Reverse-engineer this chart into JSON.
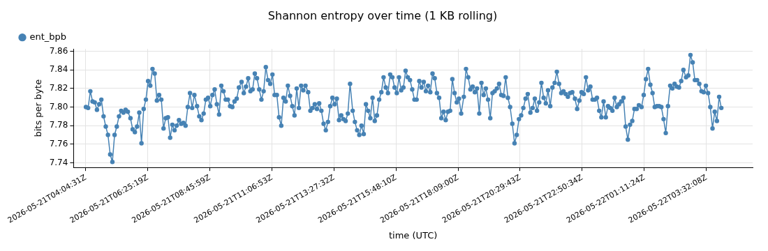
{
  "chart_data": {
    "type": "line",
    "title": "Shannon entropy over time (1 KB rolling)",
    "xlabel": "time (UTC)",
    "ylabel": "bits per byte",
    "xlim": [
      "2026-05-21T03:37",
      "2026-05-22T05:17"
    ],
    "xticks": [
      {
        "value": "2026-05-21T04:04:31",
        "label": "2026-05-21T04:04:31Z"
      },
      {
        "value": "2026-05-21T06:25:19",
        "label": "2026-05-21T06:25:19Z"
      },
      {
        "value": "2026-05-21T08:45:59",
        "label": "2026-05-21T08:45:59Z"
      },
      {
        "value": "2026-05-21T11:06:53",
        "label": "2026-05-21T11:06:53Z"
      },
      {
        "value": "2026-05-21T13:27:32",
        "label": "2026-05-21T13:27:32Z"
      },
      {
        "value": "2026-05-21T15:48:10",
        "label": "2026-05-21T15:48:10Z"
      },
      {
        "value": "2026-05-21T18:09:00",
        "label": "2026-05-21T18:09:00Z"
      },
      {
        "value": "2026-05-21T20:29:43",
        "label": "2026-05-21T20:29:43Z"
      },
      {
        "value": "2026-05-21T22:50:34",
        "label": "2026-05-21T22:50:34Z"
      },
      {
        "value": "2026-05-22T01:11:24",
        "label": "2026-05-22T01:11:24Z"
      },
      {
        "value": "2026-05-22T03:32:08",
        "label": "2026-05-22T03:32:08Z"
      }
    ],
    "ylim": [
      7.735,
      7.8625
    ],
    "yticks": [
      7.74,
      7.76,
      7.78,
      {
        "value": 7.8,
        "label": "7.80"
      },
      7.82,
      7.84,
      7.86
    ],
    "grid": true,
    "legend": "top left",
    "marker": "circle",
    "line_style": "solid",
    "x": [
      "2026-05-21T04:05",
      "2026-05-21T04:10",
      "2026-05-21T04:15",
      "2026-05-21T04:20",
      "2026-05-21T04:25",
      "2026-05-21T04:30",
      "2026-05-21T04:35",
      "2026-05-21T04:40",
      "2026-05-21T04:45",
      "2026-05-21T04:50",
      "2026-05-21T04:55",
      "2026-05-21T05:00",
      "2026-05-21T05:05",
      "2026-05-21T05:10",
      "2026-05-21T05:15",
      "2026-05-21T05:20",
      "2026-05-21T05:25",
      "2026-05-21T05:30",
      "2026-05-21T05:35",
      "2026-05-21T05:40",
      "2026-05-21T05:46",
      "2026-05-21T05:51",
      "2026-05-21T05:56",
      "2026-05-21T06:01",
      "2026-05-21T06:06",
      "2026-05-21T06:11",
      "2026-05-21T06:16",
      "2026-05-21T06:21",
      "2026-05-21T06:26",
      "2026-05-21T06:31",
      "2026-05-21T06:36",
      "2026-05-21T06:41",
      "2026-05-21T06:46",
      "2026-05-21T06:51",
      "2026-05-21T06:56",
      "2026-05-21T07:01",
      "2026-05-21T07:06",
      "2026-05-21T07:11",
      "2026-05-21T07:16",
      "2026-05-21T07:21",
      "2026-05-21T07:26",
      "2026-05-21T07:31",
      "2026-05-21T07:36",
      "2026-05-21T07:41",
      "2026-05-21T07:46",
      "2026-05-21T07:51",
      "2026-05-21T07:56",
      "2026-05-21T08:01",
      "2026-05-21T08:06",
      "2026-05-21T08:11",
      "2026-05-21T08:17",
      "2026-05-21T08:22",
      "2026-05-21T08:27",
      "2026-05-21T08:32",
      "2026-05-21T08:37",
      "2026-05-21T08:42",
      "2026-05-21T08:47",
      "2026-05-21T08:52",
      "2026-05-21T08:57",
      "2026-05-21T09:02",
      "2026-05-21T09:07",
      "2026-05-21T09:12",
      "2026-05-21T09:17",
      "2026-05-21T09:22",
      "2026-05-21T09:27",
      "2026-05-21T09:32",
      "2026-05-21T09:37",
      "2026-05-21T09:42",
      "2026-05-21T09:47",
      "2026-05-21T09:52",
      "2026-05-21T09:58",
      "2026-05-21T10:03",
      "2026-05-21T10:08",
      "2026-05-21T10:13",
      "2026-05-21T10:18",
      "2026-05-21T10:23",
      "2026-05-21T10:28",
      "2026-05-21T10:33",
      "2026-05-21T10:38",
      "2026-05-21T10:43",
      "2026-05-21T10:48",
      "2026-05-21T10:53",
      "2026-05-21T10:58",
      "2026-05-21T11:03",
      "2026-05-21T11:08",
      "2026-05-21T11:13",
      "2026-05-21T11:18",
      "2026-05-21T11:23",
      "2026-05-21T11:28",
      "2026-05-21T11:33",
      "2026-05-21T11:38",
      "2026-05-21T11:43",
      "2026-05-21T11:48",
      "2026-05-21T11:53",
      "2026-05-21T11:58",
      "2026-05-21T12:03",
      "2026-05-21T12:08",
      "2026-05-21T12:13",
      "2026-05-21T12:18",
      "2026-05-21T12:23",
      "2026-05-21T12:29",
      "2026-05-21T12:34",
      "2026-05-21T12:39",
      "2026-05-21T12:44",
      "2026-05-21T12:49",
      "2026-05-21T12:54",
      "2026-05-21T12:59",
      "2026-05-21T13:04",
      "2026-05-21T13:09",
      "2026-05-21T13:14",
      "2026-05-21T13:19",
      "2026-05-21T13:24",
      "2026-05-21T13:29",
      "2026-05-21T13:34",
      "2026-05-21T13:39",
      "2026-05-21T13:44",
      "2026-05-21T13:49",
      "2026-05-21T13:54",
      "2026-05-21T13:59",
      "2026-05-21T14:04",
      "2026-05-21T14:10",
      "2026-05-21T14:15",
      "2026-05-21T14:20",
      "2026-05-21T14:25",
      "2026-05-21T14:30",
      "2026-05-21T14:35",
      "2026-05-21T14:40",
      "2026-05-21T14:45",
      "2026-05-21T14:50",
      "2026-05-21T14:55",
      "2026-05-21T15:00",
      "2026-05-21T15:05",
      "2026-05-21T15:10",
      "2026-05-21T15:15",
      "2026-05-21T15:20",
      "2026-05-21T15:25",
      "2026-05-21T15:30",
      "2026-05-21T15:35",
      "2026-05-21T15:40",
      "2026-05-21T15:45",
      "2026-05-21T15:50",
      "2026-05-21T15:55",
      "2026-05-21T16:00",
      "2026-05-21T16:05",
      "2026-05-21T16:10",
      "2026-05-21T16:15",
      "2026-05-21T16:20",
      "2026-05-21T16:25",
      "2026-05-21T16:30",
      "2026-05-21T16:35",
      "2026-05-21T16:41",
      "2026-05-21T16:46",
      "2026-05-21T16:51",
      "2026-05-21T16:56",
      "2026-05-21T17:01",
      "2026-05-21T17:06",
      "2026-05-21T17:11",
      "2026-05-21T17:16",
      "2026-05-21T17:21",
      "2026-05-21T17:26",
      "2026-05-21T17:31",
      "2026-05-21T17:36",
      "2026-05-21T17:41",
      "2026-05-21T17:46",
      "2026-05-21T17:51",
      "2026-05-21T17:56",
      "2026-05-21T18:01",
      "2026-05-21T18:06",
      "2026-05-21T18:11",
      "2026-05-21T18:16",
      "2026-05-21T18:22",
      "2026-05-21T18:27",
      "2026-05-21T18:32",
      "2026-05-21T18:37",
      "2026-05-21T18:42",
      "2026-05-21T18:47",
      "2026-05-21T18:52",
      "2026-05-21T18:57",
      "2026-05-21T19:02",
      "2026-05-21T19:07",
      "2026-05-21T19:12",
      "2026-05-21T19:17",
      "2026-05-21T19:22",
      "2026-05-21T19:27",
      "2026-05-21T19:32",
      "2026-05-21T19:37",
      "2026-05-21T19:42",
      "2026-05-21T19:47",
      "2026-05-21T19:52",
      "2026-05-21T19:57",
      "2026-05-21T20:02",
      "2026-05-21T20:07",
      "2026-05-21T20:12",
      "2026-05-21T20:17",
      "2026-05-21T20:22",
      "2026-05-21T20:27",
      "2026-05-21T20:32",
      "2026-05-21T20:37",
      "2026-05-21T20:42",
      "2026-05-21T20:47",
      "2026-05-21T20:53",
      "2026-05-21T20:58",
      "2026-05-21T21:03",
      "2026-05-21T21:08",
      "2026-05-21T21:13",
      "2026-05-21T21:18",
      "2026-05-21T21:23",
      "2026-05-21T21:28",
      "2026-05-21T21:33",
      "2026-05-21T21:38",
      "2026-05-21T21:43",
      "2026-05-21T21:48",
      "2026-05-21T21:53",
      "2026-05-21T21:58",
      "2026-05-21T22:03",
      "2026-05-21T22:08",
      "2026-05-21T22:13",
      "2026-05-21T22:18",
      "2026-05-21T22:23",
      "2026-05-21T22:28",
      "2026-05-21T22:34",
      "2026-05-21T22:39",
      "2026-05-21T22:44",
      "2026-05-21T22:49",
      "2026-05-21T22:54",
      "2026-05-21T22:59",
      "2026-05-21T23:04",
      "2026-05-21T23:09",
      "2026-05-21T23:14",
      "2026-05-21T23:19",
      "2026-05-21T23:24",
      "2026-05-21T23:29",
      "2026-05-21T23:34",
      "2026-05-21T23:39",
      "2026-05-21T23:44",
      "2026-05-21T23:49",
      "2026-05-21T23:54",
      "2026-05-21T23:59",
      "2026-05-22T00:04",
      "2026-05-22T00:09",
      "2026-05-22T00:14",
      "2026-05-22T00:19",
      "2026-05-22T00:24",
      "2026-05-22T00:29",
      "2026-05-22T00:34",
      "2026-05-22T00:39",
      "2026-05-22T00:44",
      "2026-05-22T00:49",
      "2026-05-22T00:54",
      "2026-05-22T00:59",
      "2026-05-22T01:05",
      "2026-05-22T01:10",
      "2026-05-22T01:15",
      "2026-05-22T01:20",
      "2026-05-22T01:25",
      "2026-05-22T01:30",
      "2026-05-22T01:35",
      "2026-05-22T01:40",
      "2026-05-22T01:45",
      "2026-05-22T01:50",
      "2026-05-22T01:55",
      "2026-05-22T02:00",
      "2026-05-22T02:05",
      "2026-05-22T02:10",
      "2026-05-22T02:15",
      "2026-05-22T02:20",
      "2026-05-22T02:25",
      "2026-05-22T02:30",
      "2026-05-22T02:35",
      "2026-05-22T02:40",
      "2026-05-22T02:46",
      "2026-05-22T02:51",
      "2026-05-22T02:56",
      "2026-05-22T03:01",
      "2026-05-22T03:06",
      "2026-05-22T03:11",
      "2026-05-22T03:16",
      "2026-05-22T03:21",
      "2026-05-22T03:26",
      "2026-05-22T03:31",
      "2026-05-22T03:36",
      "2026-05-22T03:41",
      "2026-05-22T03:46",
      "2026-05-22T03:51",
      "2026-05-22T03:56",
      "2026-05-22T04:01",
      "2026-05-22T04:06"
    ],
    "series": [
      {
        "name": "ent_bpb",
        "color": "#4682b4",
        "values": [
          7.8,
          7.799,
          7.817,
          7.806,
          7.805,
          7.797,
          7.803,
          7.808,
          7.79,
          7.779,
          7.77,
          7.749,
          7.741,
          7.77,
          7.779,
          7.79,
          7.796,
          7.794,
          7.797,
          7.795,
          7.788,
          7.776,
          7.773,
          7.779,
          7.794,
          7.761,
          7.798,
          7.808,
          7.828,
          7.823,
          7.841,
          7.836,
          7.807,
          7.813,
          7.808,
          7.777,
          7.788,
          7.789,
          7.767,
          7.781,
          7.775,
          7.78,
          7.786,
          7.782,
          7.783,
          7.78,
          7.8,
          7.815,
          7.799,
          7.813,
          7.801,
          7.79,
          7.786,
          7.793,
          7.808,
          7.81,
          7.801,
          7.813,
          7.819,
          7.803,
          7.792,
          7.823,
          7.817,
          7.808,
          7.808,
          7.801,
          7.8,
          7.806,
          7.809,
          7.821,
          7.827,
          7.815,
          7.822,
          7.831,
          7.817,
          7.819,
          7.836,
          7.831,
          7.819,
          7.808,
          7.817,
          7.843,
          7.829,
          7.825,
          7.835,
          7.813,
          7.813,
          7.789,
          7.78,
          7.81,
          7.806,
          7.823,
          7.812,
          7.801,
          7.791,
          7.82,
          7.799,
          7.823,
          7.818,
          7.823,
          7.816,
          7.796,
          7.799,
          7.803,
          7.798,
          7.804,
          7.796,
          7.782,
          7.775,
          7.784,
          7.801,
          7.81,
          7.803,
          7.809,
          7.786,
          7.791,
          7.787,
          7.785,
          7.793,
          7.825,
          7.796,
          7.784,
          7.775,
          7.77,
          7.78,
          7.771,
          7.803,
          7.796,
          7.788,
          7.81,
          7.785,
          7.791,
          7.808,
          7.816,
          7.832,
          7.821,
          7.815,
          7.835,
          7.832,
          7.821,
          7.815,
          7.832,
          7.818,
          7.821,
          7.839,
          7.832,
          7.829,
          7.819,
          7.808,
          7.808,
          7.828,
          7.821,
          7.827,
          7.817,
          7.823,
          7.816,
          7.836,
          7.831,
          7.815,
          7.81,
          7.788,
          7.795,
          7.786,
          7.795,
          7.796,
          7.83,
          7.815,
          7.805,
          7.809,
          7.793,
          7.811,
          7.841,
          7.832,
          7.819,
          7.822,
          7.816,
          7.82,
          7.793,
          7.826,
          7.813,
          7.82,
          7.808,
          7.788,
          7.815,
          7.817,
          7.82,
          7.825,
          7.813,
          7.812,
          7.832,
          7.81,
          7.8,
          7.782,
          7.761,
          7.77,
          7.787,
          7.791,
          7.799,
          7.809,
          7.814,
          7.794,
          7.799,
          7.809,
          7.796,
          7.805,
          7.826,
          7.81,
          7.804,
          7.818,
          7.801,
          7.821,
          7.826,
          7.838,
          7.825,
          7.815,
          7.817,
          7.814,
          7.811,
          7.815,
          7.816,
          7.809,
          7.798,
          7.807,
          7.816,
          7.814,
          7.832,
          7.818,
          7.822,
          7.808,
          7.808,
          7.81,
          7.796,
          7.789,
          7.806,
          7.789,
          7.801,
          7.799,
          7.796,
          7.81,
          7.8,
          7.803,
          7.806,
          7.81,
          7.779,
          7.765,
          7.781,
          7.785,
          7.798,
          7.798,
          7.802,
          7.8,
          7.813,
          7.83,
          7.841,
          7.824,
          7.815,
          7.8,
          7.801,
          7.801,
          7.8,
          7.787,
          7.772,
          7.801,
          7.823,
          7.82,
          7.825,
          7.822,
          7.821,
          7.828,
          7.84,
          7.832,
          7.834,
          7.856,
          7.848,
          7.829,
          7.829,
          7.825,
          7.817,
          7.816,
          7.823,
          7.815,
          7.8,
          7.777,
          7.795,
          7.785,
          7.811,
          7.799
        ]
      }
    ]
  }
}
